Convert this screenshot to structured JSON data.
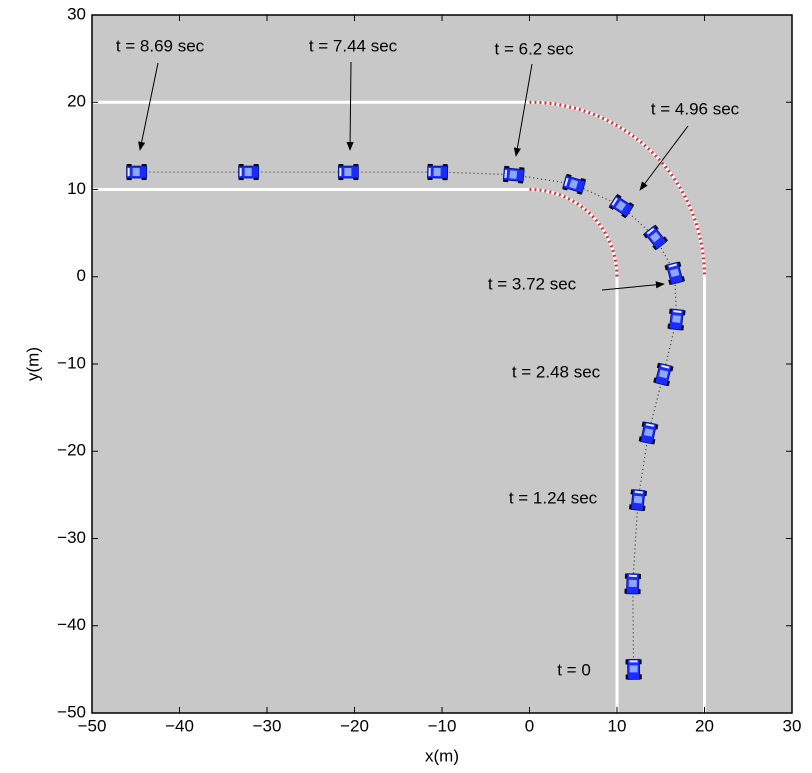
{
  "chart_data": {
    "type": "scatter",
    "xlabel": "x(m)",
    "ylabel": "y(m)",
    "xlim": [
      -50,
      30
    ],
    "ylim": [
      -50,
      30
    ],
    "xticks": [
      {
        "value": -50,
        "label": "−50"
      },
      {
        "value": -40,
        "label": "−40"
      },
      {
        "value": -30,
        "label": "−30"
      },
      {
        "value": -20,
        "label": "−20"
      },
      {
        "value": -10,
        "label": "−10"
      },
      0,
      10,
      20,
      30
    ],
    "yticks": [
      {
        "value": -50,
        "label": "−50"
      },
      {
        "value": -40,
        "label": "−40"
      },
      {
        "value": -30,
        "label": "−30"
      },
      {
        "value": -20,
        "label": "−20"
      },
      {
        "value": -10,
        "label": "−10"
      },
      0,
      10,
      20,
      30
    ],
    "road": {
      "inner": 10,
      "outer": 20
    },
    "series": [
      {
        "color": "#1a2cff",
        "x": [
          11.9,
          11.8,
          12.4,
          13.6,
          15.3,
          16.8,
          16.6,
          14.4,
          10.5,
          5.1,
          -1.8,
          -10.5,
          -20.7,
          -32.1,
          -44.9
        ],
        "values": [
          -45.0,
          -35.2,
          -25.6,
          -17.9,
          -11.2,
          -4.9,
          0.4,
          4.5,
          8.1,
          10.6,
          11.7,
          12.0,
          12.0,
          12.0,
          12.0
        ]
      }
    ],
    "annotations": [
      {
        "text": "t = 0"
      },
      {
        "text": "t = 1.24 sec"
      },
      {
        "text": "t = 2.48 sec"
      },
      {
        "text": "t = 3.72 sec"
      },
      {
        "text": "t = 4.96 sec"
      },
      {
        "text": "t = 6.2 sec"
      },
      {
        "text": "t = 7.44 sec"
      },
      {
        "text": "t = 8.69 sec"
      }
    ]
  }
}
